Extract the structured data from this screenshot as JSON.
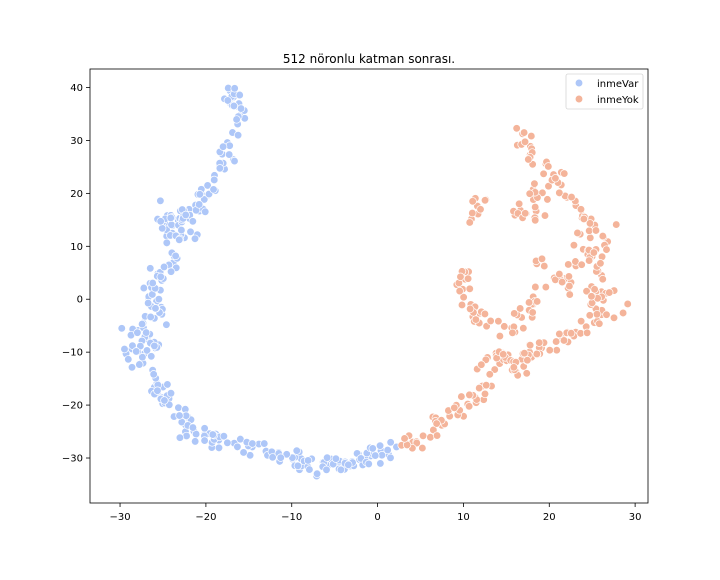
{
  "chart_data": {
    "type": "scatter",
    "title": "512 nöronlu katman sonrası.",
    "xlabel": "",
    "ylabel": "",
    "xlim": [
      -33.5,
      31.5
    ],
    "ylim": [
      -38.5,
      43.5
    ],
    "xticks": [
      -30,
      -20,
      -10,
      0,
      10,
      20,
      30
    ],
    "yticks": [
      -30,
      -20,
      -10,
      0,
      10,
      20,
      30,
      40
    ],
    "xtick_labels": [
      "−30",
      "−20",
      "−10",
      "0",
      "10",
      "20",
      "30"
    ],
    "ytick_labels": [
      "−30",
      "−20",
      "−10",
      "0",
      "10",
      "20",
      "30",
      "40"
    ],
    "grid": false,
    "legend_position": "top-right",
    "series": [
      {
        "name": "inmeVar",
        "color": "#aec7f8",
        "path": [
          [
            -17.5,
            39.5
          ],
          [
            -16.5,
            37
          ],
          [
            -16,
            34
          ],
          [
            -17,
            30
          ],
          [
            -18,
            26
          ],
          [
            -19.5,
            22
          ],
          [
            -21,
            18
          ],
          [
            -23,
            15
          ],
          [
            -22,
            12
          ],
          [
            -25,
            15
          ],
          [
            -23.5,
            7
          ],
          [
            -25.5,
            5
          ],
          [
            -27,
            2
          ],
          [
            -25.5,
            -2
          ],
          [
            -28,
            -6
          ],
          [
            -26,
            -9
          ],
          [
            -29,
            -10
          ],
          [
            -27,
            -14
          ],
          [
            -25,
            -18
          ],
          [
            -23.5,
            -21
          ],
          [
            -22,
            -25
          ],
          [
            -20,
            -26
          ],
          [
            -18,
            -27
          ],
          [
            -15,
            -28
          ],
          [
            -12.5,
            -29
          ],
          [
            -10,
            -30
          ],
          [
            -8.5,
            -32
          ],
          [
            -6,
            -31
          ],
          [
            -4,
            -31
          ],
          [
            -2,
            -30
          ],
          [
            0,
            -29.5
          ],
          [
            2,
            -28
          ]
        ],
        "points": [
          [
            -17.2,
            39.4
          ],
          [
            -16.8,
            38.2
          ],
          [
            -16.4,
            36.5
          ],
          [
            -16.0,
            34.8
          ],
          [
            -16.3,
            33.1
          ],
          [
            -16.9,
            31.5
          ],
          [
            -17.5,
            29.6
          ],
          [
            -18.1,
            27.4
          ],
          [
            -18.4,
            25.2
          ],
          [
            -19.0,
            23.4
          ],
          [
            -19.8,
            21.5
          ],
          [
            -20.4,
            19.6
          ],
          [
            -21.2,
            17.8
          ],
          [
            -22.3,
            16.1
          ],
          [
            -23.2,
            14.8
          ],
          [
            -24.1,
            14.0
          ],
          [
            -21.0,
            12.2
          ],
          [
            -22.5,
            11.6
          ],
          [
            -24.5,
            15.8
          ],
          [
            -25.3,
            18.6
          ],
          [
            -23.8,
            6.9
          ],
          [
            -24.8,
            6.2
          ],
          [
            -25.6,
            4.8
          ],
          [
            -26.5,
            3.0
          ],
          [
            -25.3,
            1.7
          ],
          [
            -26.7,
            0.3
          ],
          [
            -25.2,
            -1.5
          ],
          [
            -24.6,
            -4.8
          ],
          [
            -27.9,
            -5.9
          ],
          [
            -26.9,
            -7.4
          ],
          [
            -25.5,
            -8.6
          ],
          [
            -28.6,
            -9.4
          ],
          [
            -29.3,
            -10.3
          ],
          [
            -27.4,
            -11.8
          ],
          [
            -26.2,
            -13.4
          ],
          [
            -25.0,
            -16.6
          ],
          [
            -24.3,
            -18.8
          ],
          [
            -23.2,
            -20.5
          ],
          [
            -22.4,
            -23.1
          ],
          [
            -21.4,
            -24.9
          ],
          [
            -20.1,
            -25.4
          ],
          [
            -18.5,
            -26.6
          ],
          [
            -16.7,
            -27.2
          ],
          [
            -14.6,
            -27.9
          ],
          [
            -13.0,
            -28.7
          ],
          [
            -11.4,
            -29.4
          ],
          [
            -9.9,
            -30.2
          ],
          [
            -9.1,
            -32.2
          ],
          [
            -8.3,
            -31.0
          ],
          [
            -7.1,
            -33.4
          ],
          [
            -5.6,
            -31.2
          ],
          [
            -4.4,
            -30.6
          ],
          [
            -3.2,
            -31.5
          ],
          [
            -2.1,
            -30.3
          ],
          [
            -0.8,
            -29.6
          ],
          [
            0.4,
            -28.6
          ],
          [
            1.3,
            -29.4
          ],
          [
            2.2,
            -27.9
          ],
          [
            -29.8,
            -5.5
          ],
          [
            -26.0,
            -3.6
          ]
        ]
      },
      {
        "name": "inmeYok",
        "color": "#f4b49a",
        "path": [
          [
            3,
            -27.5
          ],
          [
            5,
            -26.5
          ],
          [
            7,
            -24
          ],
          [
            8.5,
            -22
          ],
          [
            10,
            -20
          ],
          [
            11.5,
            -18.5
          ],
          [
            12.5,
            -15
          ],
          [
            13.5,
            -11
          ],
          [
            15,
            -10
          ],
          [
            16,
            -13
          ],
          [
            17.5,
            -11
          ],
          [
            19,
            -9
          ],
          [
            21,
            -8
          ],
          [
            22.5,
            -6
          ],
          [
            24.5,
            -5
          ],
          [
            26,
            -3
          ],
          [
            25,
            1
          ],
          [
            26,
            4
          ],
          [
            25,
            8
          ],
          [
            26.5,
            11
          ],
          [
            25,
            14
          ],
          [
            23,
            18
          ],
          [
            21,
            22
          ],
          [
            19,
            26
          ],
          [
            17.5,
            29
          ],
          [
            16,
            32
          ],
          [
            19,
            20
          ],
          [
            17,
            16
          ],
          [
            19.5,
            16
          ],
          [
            12.5,
            19
          ],
          [
            11.5,
            16
          ],
          [
            10.5,
            5
          ],
          [
            10,
            2
          ],
          [
            11,
            -3
          ],
          [
            12.5,
            -5
          ],
          [
            16,
            -6
          ],
          [
            18,
            -1
          ],
          [
            19.5,
            2
          ],
          [
            18.5,
            7
          ],
          [
            22,
            2
          ],
          [
            23,
            6
          ],
          [
            23.5,
            12
          ],
          [
            26,
            1.5
          ],
          [
            28.5,
            -2.5
          ]
        ],
        "points": [
          [
            2.8,
            -27.6
          ],
          [
            4.1,
            -27.0
          ],
          [
            5.3,
            -25.8
          ],
          [
            6.5,
            -24.7
          ],
          [
            7.6,
            -23.2
          ],
          [
            8.4,
            -22.1
          ],
          [
            9.3,
            -21.0
          ],
          [
            10.5,
            -19.8
          ],
          [
            11.4,
            -18.6
          ],
          [
            12.2,
            -16.4
          ],
          [
            11.6,
            -13.2
          ],
          [
            12.8,
            -11.0
          ],
          [
            13.8,
            -10.2
          ],
          [
            15.2,
            -10.5
          ],
          [
            16.1,
            -13.6
          ],
          [
            17.6,
            -11.3
          ],
          [
            19.1,
            -9.2
          ],
          [
            20.8,
            -8.0
          ],
          [
            22.7,
            -6.4
          ],
          [
            24.3,
            -5.2
          ],
          [
            25.8,
            -3.1
          ],
          [
            26.3,
            -0.2
          ],
          [
            25.2,
            1.8
          ],
          [
            26.1,
            4.5
          ],
          [
            25.0,
            8.1
          ],
          [
            26.8,
            10.9
          ],
          [
            25.3,
            14.0
          ],
          [
            23.1,
            17.7
          ],
          [
            21.4,
            21.6
          ],
          [
            19.6,
            25.6
          ],
          [
            17.8,
            28.9
          ],
          [
            16.2,
            32.3
          ],
          [
            19.2,
            20.1
          ],
          [
            17.3,
            16.2
          ],
          [
            19.5,
            15.8
          ],
          [
            12.6,
            18.8
          ],
          [
            11.7,
            16.1
          ],
          [
            10.6,
            5.2
          ],
          [
            9.9,
            1.9
          ],
          [
            11.1,
            -3.3
          ],
          [
            12.7,
            -5.1
          ],
          [
            16.0,
            -6.2
          ],
          [
            18.1,
            -1.0
          ],
          [
            19.6,
            2.3
          ],
          [
            18.4,
            7.2
          ],
          [
            22.2,
            2.1
          ],
          [
            23.1,
            6.3
          ],
          [
            23.6,
            12.3
          ],
          [
            27.8,
            14.1
          ],
          [
            28.6,
            -2.6
          ]
        ]
      }
    ]
  }
}
